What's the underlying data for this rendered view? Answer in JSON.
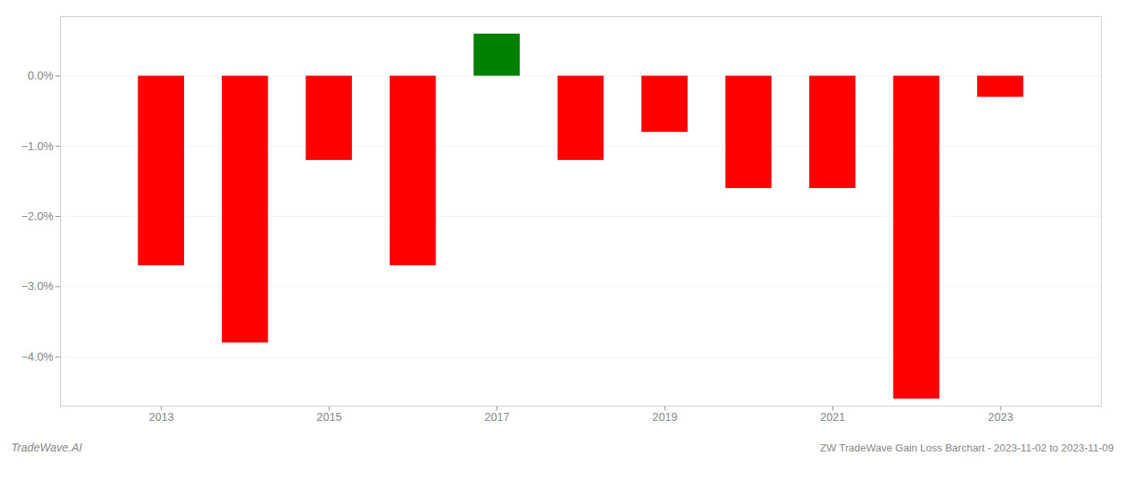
{
  "chart_data": {
    "type": "bar",
    "title": "ZW TradeWave Gain Loss Barchart - 2023-11-02 to 2023-11-09",
    "annotations": [
      "TradeWave.AI"
    ],
    "x": [
      2013,
      2014,
      2015,
      2016,
      2017,
      2018,
      2019,
      2020,
      2021,
      2022,
      2023
    ],
    "values": [
      -0.027,
      -0.038,
      -0.012,
      -0.027,
      0.006,
      -0.012,
      -0.008,
      -0.016,
      -0.016,
      -0.046,
      -0.003
    ],
    "colors": [
      "#ff0000",
      "#ff0000",
      "#ff0000",
      "#ff0000",
      "#008000",
      "#ff0000",
      "#ff0000",
      "#ff0000",
      "#ff0000",
      "#ff0000",
      "#ff0000"
    ],
    "xlim": [
      2011.8,
      2024.2
    ],
    "xticks": [
      2013,
      2015,
      2017,
      2019,
      2021,
      2023
    ],
    "ylim": [
      -0.047,
      0.0085
    ],
    "yticks": [
      {
        "value": 0.0,
        "label": "0.0%"
      },
      {
        "value": -0.01,
        "label": "−1.0%"
      },
      {
        "value": -0.02,
        "label": "−2.0%"
      },
      {
        "value": -0.03,
        "label": "−3.0%"
      },
      {
        "value": -0.04,
        "label": "−4.0%"
      }
    ],
    "grid": true
  }
}
